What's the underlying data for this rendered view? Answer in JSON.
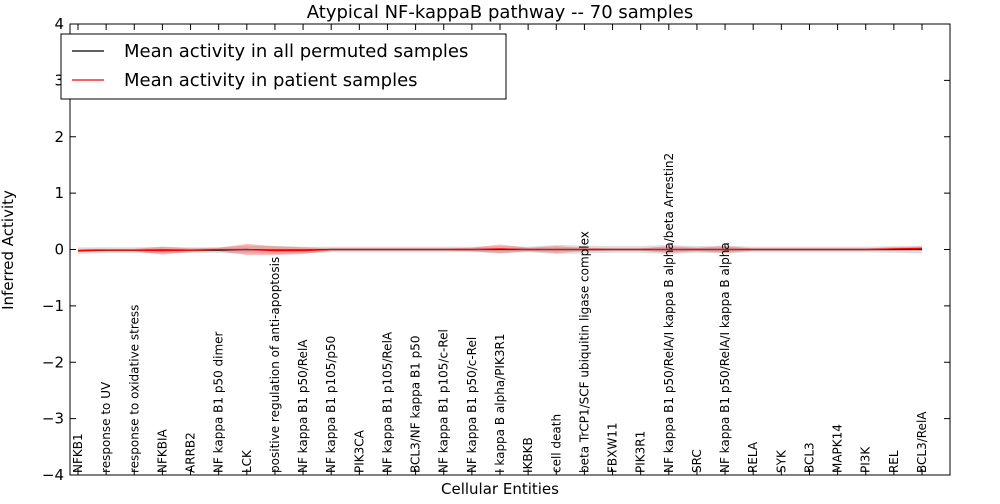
{
  "chart_data": {
    "type": "line",
    "title": "Atypical NF-kappaB pathway -- 70 samples",
    "xlabel": "Cellular Entities",
    "ylabel": "Inferred Activity",
    "ylim": [
      -4,
      4
    ],
    "yticks": [
      -4,
      -3,
      -2,
      -1,
      0,
      1,
      2,
      3,
      4
    ],
    "ytick_labels": [
      "−4",
      "−3",
      "−2",
      "−1",
      "0",
      "1",
      "2",
      "3",
      "4"
    ],
    "grid": false,
    "legend_position": "top-left",
    "categories": [
      "NFKB1",
      "response to UV",
      "response to oxidative stress",
      "NFKBIA",
      "ARRB2",
      "NF kappa B1 p50 dimer",
      "LCK",
      "positive regulation of anti-apoptosis",
      "NF kappa B1 p50/RelA",
      "NF kappa B1 p105/p50",
      "PIK3CA",
      "NF kappa B1 p105/RelA",
      "BCL3/NF kappa B1 p50",
      "NF kappa B1 p105/c-Rel",
      "NF kappa B1 p50/c-Rel",
      "I kappa B alpha/PIK3R1",
      "IKBKB",
      "cell death",
      "beta TrCP1/SCF ubiquitin ligase complex",
      "FBXW11",
      "PIK3R1",
      "NF kappa B1 p50/RelA/I kappa B alpha/beta Arrestin2",
      "SRC",
      "NF kappa B1 p50/RelA/I kappa B alpha",
      "RELA",
      "SYK",
      "BCL3",
      "MAPK14",
      "PI3K",
      "REL",
      "BCL3/RelA"
    ],
    "series": [
      {
        "name": "Mean activity in all permuted samples",
        "color": "#000000",
        "values": [
          -0.02,
          -0.01,
          -0.01,
          -0.01,
          -0.01,
          -0.01,
          0.0,
          -0.01,
          -0.01,
          0.0,
          0.0,
          0.0,
          0.0,
          0.0,
          0.0,
          0.0,
          0.0,
          0.0,
          0.0,
          0.0,
          0.0,
          0.0,
          0.0,
          0.0,
          0.0,
          0.0,
          0.0,
          0.0,
          0.0,
          0.0,
          0.0
        ],
        "band": [
          0.06,
          0.05,
          0.05,
          0.06,
          0.05,
          0.05,
          0.07,
          0.07,
          0.06,
          0.05,
          0.05,
          0.05,
          0.05,
          0.05,
          0.05,
          0.06,
          0.05,
          0.08,
          0.07,
          0.06,
          0.06,
          0.08,
          0.06,
          0.07,
          0.05,
          0.05,
          0.05,
          0.05,
          0.05,
          0.06,
          0.07
        ],
        "band_color": "#a0a0a0"
      },
      {
        "name": "Mean activity in patient samples",
        "color": "#ff0000",
        "values": [
          -0.02,
          -0.01,
          -0.01,
          -0.02,
          -0.01,
          0.0,
          0.0,
          -0.02,
          -0.02,
          0.0,
          0.0,
          0.0,
          0.0,
          0.0,
          0.0,
          0.01,
          0.0,
          0.0,
          0.0,
          0.0,
          0.0,
          0.0,
          0.0,
          0.0,
          0.0,
          0.0,
          0.0,
          0.0,
          0.0,
          0.01,
          0.02
        ],
        "band": [
          0.03,
          0.02,
          0.02,
          0.07,
          0.03,
          0.03,
          0.1,
          0.08,
          0.06,
          0.02,
          0.02,
          0.02,
          0.02,
          0.02,
          0.03,
          0.08,
          0.03,
          0.06,
          0.03,
          0.02,
          0.02,
          0.06,
          0.03,
          0.06,
          0.02,
          0.02,
          0.02,
          0.02,
          0.02,
          0.03,
          0.03
        ],
        "band_color": "#ff0000"
      }
    ]
  }
}
